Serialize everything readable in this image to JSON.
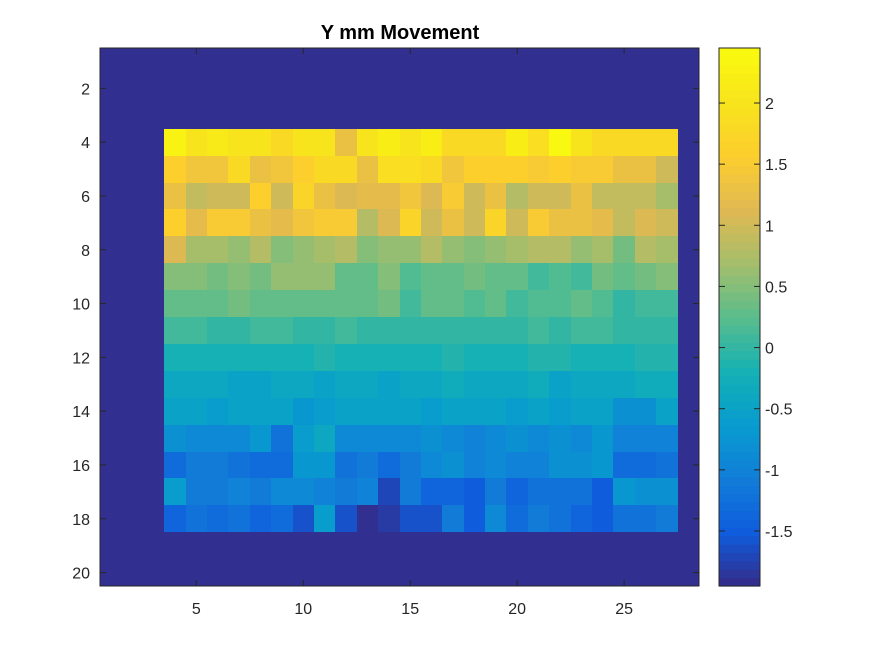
{
  "chart_data": {
    "type": "heatmap",
    "title": "Y mm Movement",
    "xlabel": "",
    "ylabel": "",
    "colormap": "parula",
    "x_range": [
      0.5,
      28.5
    ],
    "y_range": [
      0.5,
      20.5
    ],
    "y_reversed": true,
    "x_ticks": [
      5,
      10,
      15,
      20,
      25
    ],
    "y_ticks": [
      2,
      4,
      6,
      8,
      10,
      12,
      14,
      16,
      18,
      20
    ],
    "clim": [
      -1.95,
      2.45
    ],
    "colorbar_ticks": [
      2,
      1.5,
      1,
      0.5,
      0,
      -0.5,
      -1,
      -1.5
    ],
    "colorbar_location": "right",
    "grid": false,
    "background_value": -1.9,
    "data_origin": [
      4,
      4
    ],
    "data": [
      [
        2.3,
        2.0,
        2.1,
        2.0,
        2.0,
        1.8,
        2.0,
        2.0,
        1.3,
        2.0,
        2.2,
        2.0,
        2.2,
        1.8,
        1.8,
        1.8,
        2.2,
        1.9,
        2.4,
        2.0,
        1.8,
        1.8,
        1.8,
        1.8
      ],
      [
        1.6,
        1.4,
        1.4,
        1.8,
        1.3,
        1.4,
        1.6,
        1.8,
        1.8,
        1.3,
        1.9,
        1.9,
        1.8,
        1.4,
        1.6,
        1.6,
        1.6,
        1.5,
        1.6,
        1.5,
        1.5,
        1.3,
        1.3,
        1.0
      ],
      [
        1.3,
        0.9,
        1.0,
        1.0,
        1.6,
        1.0,
        1.7,
        1.3,
        1.1,
        1.2,
        1.2,
        1.4,
        1.1,
        1.5,
        1.0,
        1.3,
        0.8,
        1.0,
        1.0,
        1.3,
        0.9,
        0.9,
        0.9,
        0.7
      ],
      [
        1.6,
        1.2,
        1.5,
        1.5,
        1.3,
        1.2,
        1.4,
        1.5,
        1.5,
        0.8,
        1.1,
        1.7,
        1.0,
        1.3,
        1.0,
        1.7,
        1.0,
        1.5,
        1.3,
        1.3,
        1.2,
        0.9,
        1.1,
        1.0
      ],
      [
        1.1,
        0.7,
        0.7,
        0.6,
        0.8,
        0.5,
        0.6,
        0.7,
        0.8,
        0.5,
        0.6,
        0.6,
        0.8,
        0.6,
        0.5,
        0.6,
        0.7,
        0.8,
        0.8,
        0.6,
        0.7,
        0.4,
        0.8,
        0.7
      ],
      [
        0.5,
        0.5,
        0.4,
        0.5,
        0.4,
        0.6,
        0.6,
        0.6,
        0.3,
        0.3,
        0.5,
        0.2,
        0.3,
        0.3,
        0.4,
        0.3,
        0.3,
        0.1,
        0.2,
        0.1,
        0.4,
        0.3,
        0.4,
        0.5
      ],
      [
        0.3,
        0.3,
        0.3,
        0.4,
        0.3,
        0.3,
        0.3,
        0.3,
        0.3,
        0.3,
        0.4,
        0.1,
        0.3,
        0.3,
        0.2,
        0.3,
        0.1,
        0.2,
        0.2,
        0.3,
        0.2,
        0.0,
        0.1,
        0.1
      ],
      [
        0.1,
        0.1,
        0.0,
        0.0,
        0.1,
        0.1,
        0.0,
        0.0,
        0.1,
        0.0,
        0.0,
        0.0,
        0.0,
        0.0,
        0.0,
        0.0,
        0.0,
        0.1,
        0.0,
        0.1,
        0.1,
        0.0,
        0.0,
        0.0
      ],
      [
        -0.2,
        -0.2,
        -0.2,
        -0.2,
        -0.2,
        -0.2,
        -0.2,
        -0.1,
        -0.2,
        -0.2,
        -0.2,
        -0.2,
        -0.2,
        -0.1,
        -0.2,
        -0.2,
        -0.2,
        -0.1,
        -0.1,
        -0.2,
        -0.2,
        -0.2,
        -0.1,
        -0.1
      ],
      [
        -0.4,
        -0.4,
        -0.4,
        -0.5,
        -0.5,
        -0.4,
        -0.4,
        -0.5,
        -0.4,
        -0.4,
        -0.5,
        -0.4,
        -0.4,
        -0.3,
        -0.4,
        -0.4,
        -0.4,
        -0.3,
        -0.5,
        -0.4,
        -0.4,
        -0.4,
        -0.3,
        -0.3
      ],
      [
        -0.5,
        -0.5,
        -0.6,
        -0.5,
        -0.5,
        -0.5,
        -0.7,
        -0.6,
        -0.5,
        -0.5,
        -0.5,
        -0.5,
        -0.6,
        -0.5,
        -0.5,
        -0.5,
        -0.6,
        -0.5,
        -0.6,
        -0.5,
        -0.5,
        -0.8,
        -0.8,
        -0.5
      ],
      [
        -0.8,
        -0.9,
        -0.9,
        -0.9,
        -0.7,
        -1.2,
        -0.6,
        -0.4,
        -0.9,
        -0.9,
        -0.9,
        -0.9,
        -0.8,
        -0.9,
        -1.0,
        -0.9,
        -0.8,
        -0.9,
        -0.8,
        -0.9,
        -0.7,
        -1.0,
        -1.0,
        -1.0
      ],
      [
        -1.3,
        -1.1,
        -1.1,
        -1.2,
        -1.3,
        -1.3,
        -0.7,
        -0.7,
        -1.2,
        -1.1,
        -1.3,
        -1.1,
        -0.9,
        -0.8,
        -1.0,
        -0.9,
        -1.0,
        -1.0,
        -0.8,
        -0.8,
        -0.7,
        -1.3,
        -1.3,
        -1.2
      ],
      [
        -0.6,
        -1.1,
        -1.1,
        -1.0,
        -1.1,
        -0.9,
        -0.9,
        -1.0,
        -1.1,
        -1.0,
        -1.7,
        -1.1,
        -1.4,
        -1.4,
        -1.5,
        -1.1,
        -1.4,
        -1.2,
        -1.2,
        -1.2,
        -1.5,
        -0.7,
        -0.8,
        -0.8
      ],
      [
        -1.4,
        -1.2,
        -1.3,
        -1.2,
        -1.4,
        -1.3,
        -1.6,
        -0.6,
        -1.6,
        -1.9,
        -1.8,
        -1.6,
        -1.6,
        -1.1,
        -1.5,
        -0.9,
        -1.3,
        -1.1,
        -1.2,
        -1.4,
        -1.5,
        -1.2,
        -1.2,
        -1.1
      ]
    ]
  }
}
